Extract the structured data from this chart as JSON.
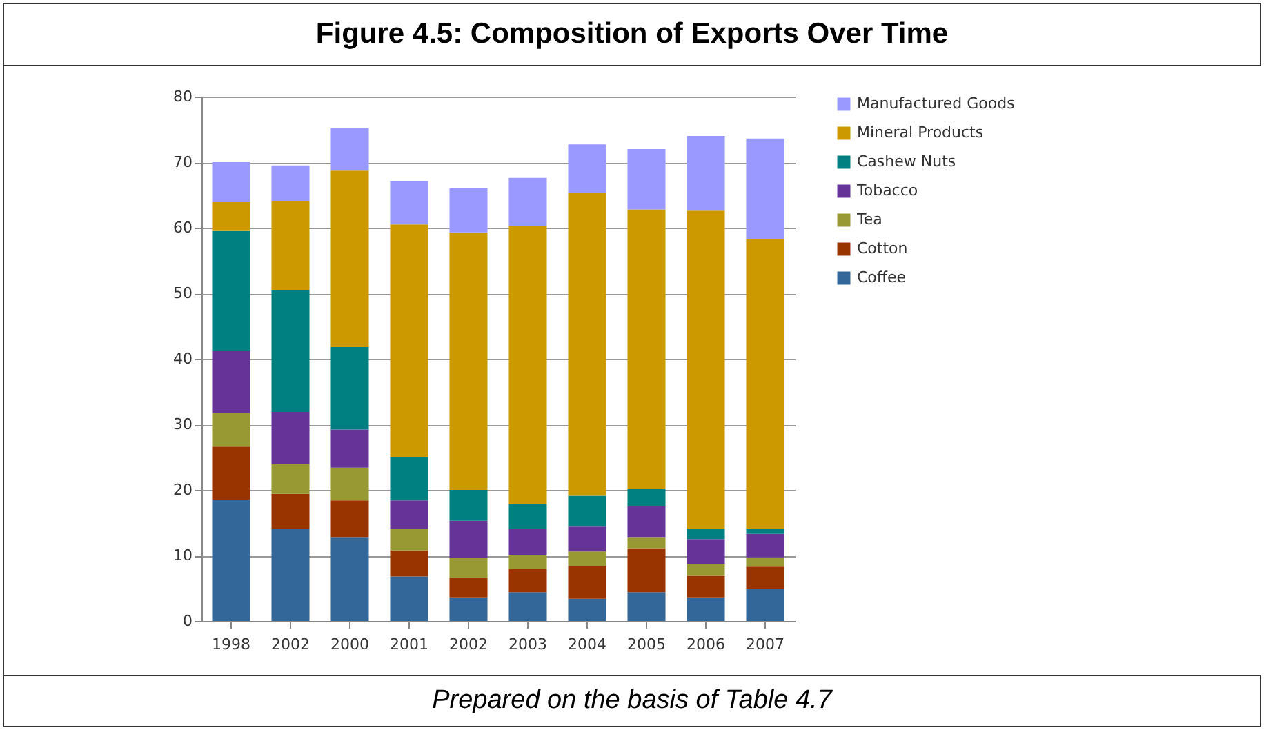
{
  "chart_data": {
    "type": "bar",
    "title": "Figure 4.5: Composition of Exports Over Time",
    "annotations": [
      "Prepared on the basis of Table 4.7"
    ],
    "categories": [
      "1998",
      "2002",
      "2000",
      "2001",
      "2002",
      "2003",
      "2004",
      "2005",
      "2006",
      "2007"
    ],
    "stacked": true,
    "ylim": [
      0,
      80
    ],
    "yticks": [
      0,
      10,
      20,
      30,
      40,
      50,
      60,
      70,
      80
    ],
    "grid": "y",
    "legend": "right",
    "series": [
      {
        "name": "Coffee",
        "color": "#336699",
        "values": [
          18.5,
          14.1,
          12.7,
          6.8,
          3.6,
          4.4,
          3.4,
          4.4,
          3.6,
          4.9
        ]
      },
      {
        "name": "Cotton",
        "color": "#993300",
        "values": [
          8.1,
          5.3,
          5.7,
          4.0,
          3.0,
          3.5,
          5.0,
          6.7,
          3.3,
          3.4
        ]
      },
      {
        "name": "Tea",
        "color": "#999933",
        "values": [
          5.1,
          4.5,
          5.0,
          3.3,
          3.0,
          2.2,
          2.2,
          1.6,
          1.8,
          1.4
        ]
      },
      {
        "name": "Tobacco",
        "color": "#663399",
        "values": [
          9.5,
          8.0,
          5.8,
          4.3,
          5.7,
          3.9,
          3.8,
          4.8,
          3.8,
          3.6
        ]
      },
      {
        "name": "Cashew Nuts",
        "color": "#008080",
        "values": [
          18.3,
          18.6,
          12.6,
          6.6,
          4.7,
          3.8,
          4.7,
          2.7,
          1.6,
          0.7
        ]
      },
      {
        "name": "Mineral Products",
        "color": "#cc9900",
        "values": [
          4.4,
          13.5,
          26.9,
          35.5,
          39.3,
          42.5,
          46.2,
          42.6,
          48.5,
          44.2
        ]
      },
      {
        "name": "Manufactured Goods",
        "color": "#9999ff",
        "values": [
          6.1,
          5.5,
          6.5,
          6.6,
          6.7,
          7.3,
          7.4,
          9.2,
          11.4,
          15.4
        ]
      }
    ]
  }
}
